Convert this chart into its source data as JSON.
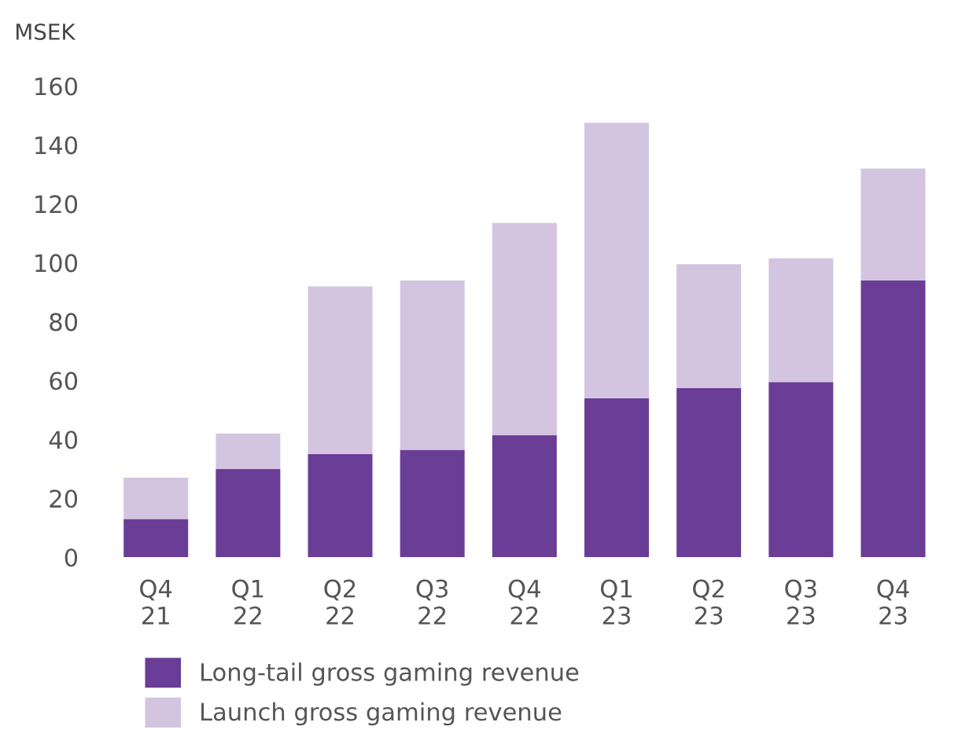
{
  "chart_data": {
    "type": "bar",
    "stacked": true,
    "ylabel": "MSEK",
    "categories": [
      "Q4\n21",
      "Q1\n22",
      "Q2\n22",
      "Q3\n22",
      "Q4\n22",
      "Q1\n23",
      "Q2\n23",
      "Q3\n23",
      "Q4\n23"
    ],
    "series": [
      {
        "name": "Long-tail gross gaming revenue",
        "color": "#6a3d97",
        "values": [
          13,
          30,
          35,
          36.5,
          41.5,
          54,
          57.5,
          59.5,
          94
        ]
      },
      {
        "name": "Launch gross gaming revenue",
        "color": "#d3c5e0",
        "values": [
          14,
          12,
          57,
          57.5,
          72,
          93.5,
          42,
          42,
          38
        ]
      }
    ],
    "ylim": [
      0,
      160
    ],
    "yticks": [
      0,
      20,
      40,
      60,
      80,
      100,
      120,
      140,
      160
    ],
    "grid": false,
    "legend": "bottom"
  }
}
